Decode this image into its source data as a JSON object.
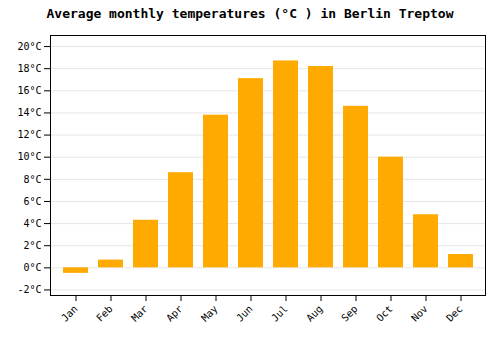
{
  "chart_data": {
    "type": "bar",
    "title": "Average monthly temperatures (°C ) in Berlin Treptow",
    "categories": [
      "Jan",
      "Feb",
      "Mar",
      "Apr",
      "May",
      "Jun",
      "Jul",
      "Aug",
      "Sep",
      "Oct",
      "Nov",
      "Dec"
    ],
    "values": [
      -0.5,
      0.7,
      4.3,
      8.6,
      13.8,
      17.1,
      18.7,
      18.2,
      14.6,
      10.0,
      4.8,
      1.2
    ],
    "color": "#FFAA00",
    "ylim": [
      -2.5,
      21
    ],
    "yticks": [
      {
        "value": -2,
        "label": "-2°C"
      },
      {
        "value": 0,
        "label": "0°C"
      },
      {
        "value": 2,
        "label": "2°C"
      },
      {
        "value": 4,
        "label": "4°C"
      },
      {
        "value": 6,
        "label": "6°C"
      },
      {
        "value": 8,
        "label": "8°C"
      },
      {
        "value": 10,
        "label": "10°C"
      },
      {
        "value": 12,
        "label": "12°C"
      },
      {
        "value": 14,
        "label": "14°C"
      },
      {
        "value": 16,
        "label": "16°C"
      },
      {
        "value": 18,
        "label": "18°C"
      },
      {
        "value": 20,
        "label": "20°C"
      }
    ],
    "grid": true
  }
}
